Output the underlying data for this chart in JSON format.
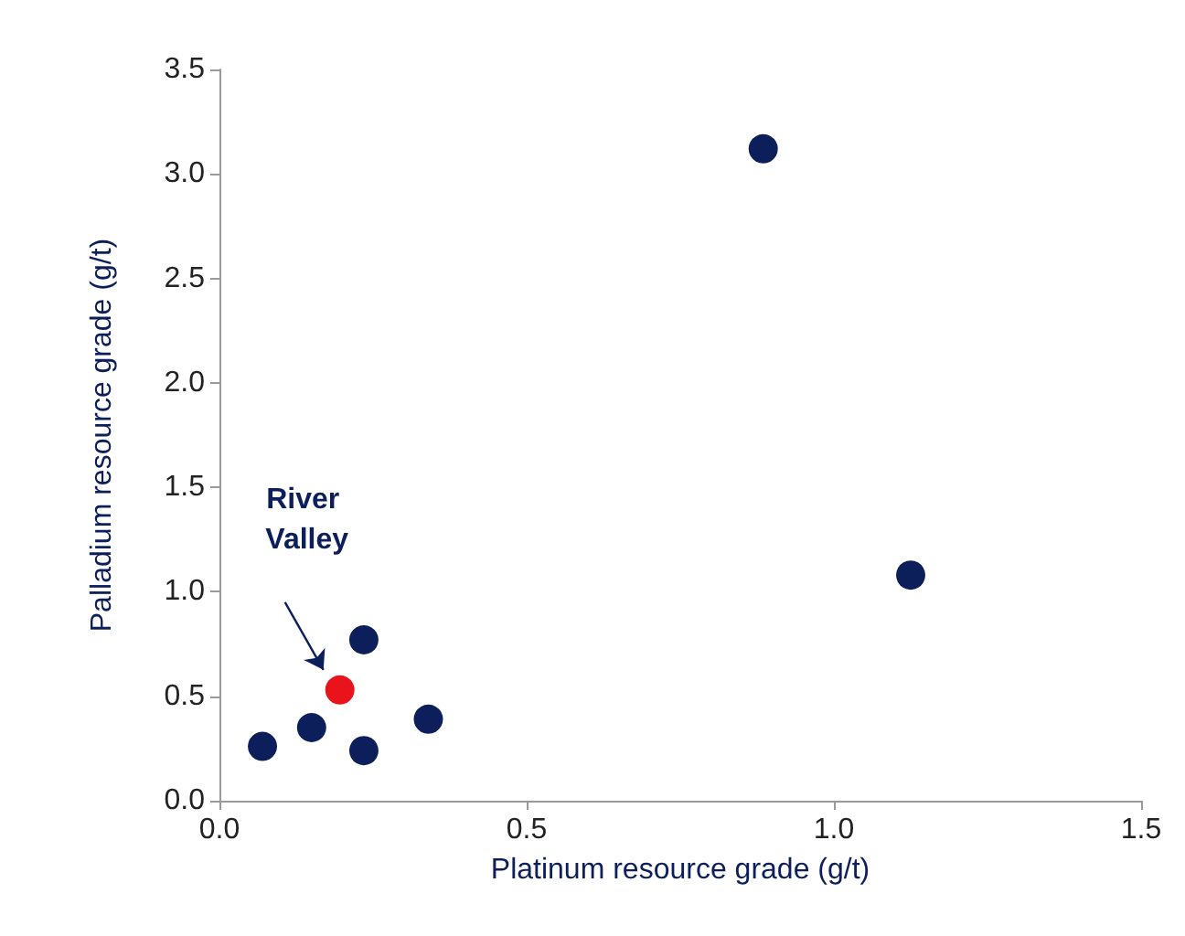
{
  "chart_data": {
    "type": "scatter",
    "xlabel": "Platinum resource grade (g/t)",
    "ylabel": "Palladium resource grade (g/t)",
    "xlim": [
      0,
      1.5
    ],
    "xticks": [
      {
        "value": 0,
        "label": "0.0"
      },
      0.5,
      {
        "value": 1,
        "label": "1.0"
      },
      1.5
    ],
    "ylim": [
      0,
      3.5
    ],
    "yticks": [
      {
        "value": 0,
        "label": "0.0"
      },
      0.5,
      {
        "value": 1,
        "label": "1.0"
      },
      1.5,
      {
        "value": 2,
        "label": "2.0"
      },
      2.5,
      {
        "value": 3,
        "label": "3.0"
      },
      3.5
    ],
    "grid": false,
    "legend": false,
    "marker": "circle",
    "series": [
      {
        "color": "#0c1f5b",
        "x": [
          0.07,
          0.15,
          0.235,
          0.235,
          0.34,
          0.885,
          1.125
        ],
        "values": [
          0.26,
          0.35,
          0.77,
          0.24,
          0.39,
          3.12,
          1.08
        ]
      },
      {
        "name": "River Valley",
        "color": "#e8131b",
        "x": [
          0.196
        ],
        "values": [
          0.53
        ]
      }
    ]
  }
}
